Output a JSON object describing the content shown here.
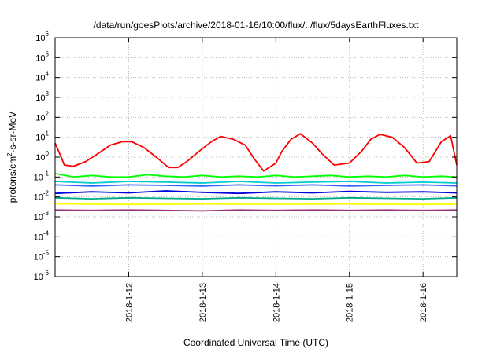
{
  "chart_data": {
    "type": "line",
    "title": "/data/run/goesPlots/archive/2018-01-16/10:00/flux/../flux/5daysEarthFluxes.txt",
    "xlabel": "Coordinated Universal Time (UTC)",
    "ylabel_parts": [
      "protons/cm",
      "2",
      "-s-sr-MeV"
    ],
    "yscale": "log",
    "ylim": [
      1e-06,
      1000000.0
    ],
    "xlim": [
      "2018-01-11 00:00",
      "2018-01-16 11:00"
    ],
    "grid": true,
    "legend": "none",
    "y_ticks": [
      {
        "base": "10",
        "exp": "-6"
      },
      {
        "base": "10",
        "exp": "-5"
      },
      {
        "base": "10",
        "exp": "-4"
      },
      {
        "base": "10",
        "exp": "-3"
      },
      {
        "base": "10",
        "exp": "-2"
      },
      {
        "base": "10",
        "exp": "-1"
      },
      {
        "base": "10",
        "exp": "0"
      },
      {
        "base": "10",
        "exp": "1"
      },
      {
        "base": "10",
        "exp": "2"
      },
      {
        "base": "10",
        "exp": "3"
      },
      {
        "base": "10",
        "exp": "4"
      },
      {
        "base": "10",
        "exp": "5"
      },
      {
        "base": "10",
        "exp": "6"
      }
    ],
    "x_ticks": [
      "2018-1-12",
      "2018-1-13",
      "2018-1-14",
      "2018-1-15",
      "2018-1-16"
    ],
    "series": [
      {
        "color": "#ff0000",
        "x": [
          "2018-01-11 00:00",
          "2018-01-11 02:00",
          "2018-01-11 03:00",
          "2018-01-11 06:00",
          "2018-01-11 10:00",
          "2018-01-11 14:00",
          "2018-01-11 18:00",
          "2018-01-11 22:00",
          "2018-01-12 01:00",
          "2018-01-12 05:00",
          "2018-01-12 09:00",
          "2018-01-12 13:00",
          "2018-01-12 16:00",
          "2018-01-12 19:00",
          "2018-01-12 23:00",
          "2018-01-13 03:00",
          "2018-01-13 06:00",
          "2018-01-13 10:00",
          "2018-01-13 14:00",
          "2018-01-13 17:00",
          "2018-01-13 20:00",
          "2018-01-14 00:00",
          "2018-01-14 02:00",
          "2018-01-14 05:00",
          "2018-01-14 08:00",
          "2018-01-14 12:00",
          "2018-01-14 15:00",
          "2018-01-14 19:00",
          "2018-01-15 00:00",
          "2018-01-15 04:00",
          "2018-01-15 07:00",
          "2018-01-15 10:00",
          "2018-01-15 14:00",
          "2018-01-15 18:00",
          "2018-01-15 22:00",
          "2018-01-16 02:00",
          "2018-01-16 06:00",
          "2018-01-16 09:00",
          "2018-01-16 11:00"
        ],
        "y": [
          5,
          1,
          0.4,
          0.35,
          0.6,
          1.5,
          4,
          6,
          6,
          3,
          1,
          0.3,
          0.3,
          0.6,
          2,
          6,
          11,
          8,
          4,
          0.8,
          0.2,
          0.5,
          2,
          8,
          15,
          5,
          1.5,
          0.4,
          0.5,
          2,
          8,
          14,
          10,
          3,
          0.5,
          0.6,
          6,
          12,
          0.4
        ]
      },
      {
        "color": "#00ff00",
        "x": [
          "2018-01-11 00:00",
          "2018-01-11 06:00",
          "2018-01-11 12:00",
          "2018-01-11 18:00",
          "2018-01-12 00:00",
          "2018-01-12 06:00",
          "2018-01-12 12:00",
          "2018-01-12 18:00",
          "2018-01-13 00:00",
          "2018-01-13 06:00",
          "2018-01-13 12:00",
          "2018-01-13 18:00",
          "2018-01-14 00:00",
          "2018-01-14 06:00",
          "2018-01-14 12:00",
          "2018-01-14 18:00",
          "2018-01-15 00:00",
          "2018-01-15 06:00",
          "2018-01-15 12:00",
          "2018-01-15 18:00",
          "2018-01-16 00:00",
          "2018-01-16 06:00",
          "2018-01-16 11:00"
        ],
        "y": [
          0.15,
          0.1,
          0.12,
          0.1,
          0.1,
          0.13,
          0.11,
          0.1,
          0.12,
          0.1,
          0.11,
          0.1,
          0.12,
          0.1,
          0.11,
          0.12,
          0.1,
          0.11,
          0.1,
          0.12,
          0.1,
          0.11,
          0.1
        ]
      },
      {
        "color": "#00cccc",
        "x": [
          "2018-01-11 00:00",
          "2018-01-11 12:00",
          "2018-01-12 00:00",
          "2018-01-12 12:00",
          "2018-01-13 00:00",
          "2018-01-13 12:00",
          "2018-01-14 00:00",
          "2018-01-14 12:00",
          "2018-01-15 00:00",
          "2018-01-15 12:00",
          "2018-01-16 00:00",
          "2018-01-16 11:00"
        ],
        "y": [
          0.06,
          0.05,
          0.06,
          0.055,
          0.05,
          0.06,
          0.05,
          0.055,
          0.06,
          0.05,
          0.055,
          0.05
        ]
      },
      {
        "color": "#3366ff",
        "x": [
          "2018-01-11 00:00",
          "2018-01-11 12:00",
          "2018-01-12 00:00",
          "2018-01-12 12:00",
          "2018-01-13 00:00",
          "2018-01-13 12:00",
          "2018-01-14 00:00",
          "2018-01-14 12:00",
          "2018-01-15 00:00",
          "2018-01-15 12:00",
          "2018-01-16 00:00",
          "2018-01-16 11:00"
        ],
        "y": [
          0.04,
          0.035,
          0.04,
          0.038,
          0.035,
          0.04,
          0.036,
          0.04,
          0.035,
          0.038,
          0.04,
          0.036
        ]
      },
      {
        "color": "#0000dd",
        "x": [
          "2018-01-11 00:00",
          "2018-01-11 12:00",
          "2018-01-12 00:00",
          "2018-01-12 12:00",
          "2018-01-13 00:00",
          "2018-01-13 12:00",
          "2018-01-14 00:00",
          "2018-01-14 12:00",
          "2018-01-15 00:00",
          "2018-01-15 12:00",
          "2018-01-16 00:00",
          "2018-01-16 11:00"
        ],
        "y": [
          0.015,
          0.018,
          0.016,
          0.02,
          0.017,
          0.015,
          0.018,
          0.016,
          0.019,
          0.017,
          0.018,
          0.016
        ]
      },
      {
        "color": "#00aa88",
        "x": [
          "2018-01-11 00:00",
          "2018-01-11 12:00",
          "2018-01-12 00:00",
          "2018-01-12 12:00",
          "2018-01-13 00:00",
          "2018-01-13 12:00",
          "2018-01-14 00:00",
          "2018-01-14 12:00",
          "2018-01-15 00:00",
          "2018-01-15 12:00",
          "2018-01-16 00:00",
          "2018-01-16 11:00"
        ],
        "y": [
          0.009,
          0.008,
          0.009,
          0.0085,
          0.008,
          0.009,
          0.0085,
          0.008,
          0.009,
          0.0085,
          0.008,
          0.009
        ]
      },
      {
        "color": "#ffff00",
        "x": [
          "2018-01-11 00:00",
          "2018-01-12 00:00",
          "2018-01-13 00:00",
          "2018-01-14 00:00",
          "2018-01-15 00:00",
          "2018-01-16 00:00",
          "2018-01-16 11:00"
        ],
        "y": [
          0.0045,
          0.0042,
          0.0044,
          0.0043,
          0.0044,
          0.0042,
          0.0043
        ]
      },
      {
        "color": "#993377",
        "x": [
          "2018-01-11 00:00",
          "2018-01-11 12:00",
          "2018-01-12 00:00",
          "2018-01-12 12:00",
          "2018-01-13 00:00",
          "2018-01-13 12:00",
          "2018-01-14 00:00",
          "2018-01-14 12:00",
          "2018-01-15 00:00",
          "2018-01-15 12:00",
          "2018-01-16 00:00",
          "2018-01-16 11:00"
        ],
        "y": [
          0.0022,
          0.0021,
          0.0022,
          0.0021,
          0.002,
          0.0022,
          0.0021,
          0.0022,
          0.0021,
          0.0022,
          0.0021,
          0.0022
        ]
      }
    ]
  }
}
